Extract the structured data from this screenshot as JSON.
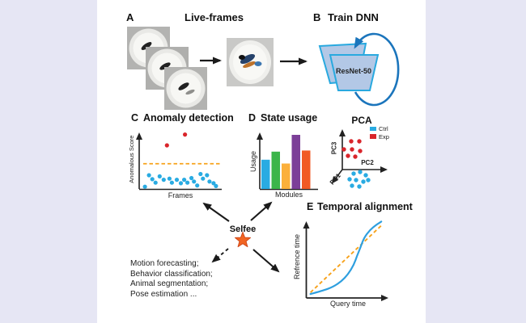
{
  "background": {
    "page": "#E6E6F4",
    "panel": "#FFFFFF"
  },
  "palette": {
    "blue": "#29ABE2",
    "green": "#3BB54A",
    "yellow": "#FBB03B",
    "purple": "#7C3F98",
    "orange": "#F15A24",
    "red": "#D9252B",
    "dorange": "#F7A21B",
    "cycle": "#1B75BC",
    "trapfill": "#B3C8E6",
    "trapstroke": "#29A9DF",
    "star": "#F26522",
    "ink": "#1A1A1A"
  },
  "panel_a": {
    "label": "A",
    "title": "Live-frames"
  },
  "panel_b": {
    "label": "B",
    "title": "Train DNN",
    "model_label": "ResNet-50"
  },
  "panel_c": {
    "label": "C",
    "title": "Anomaly detection",
    "ylabel": "Anomalous Score",
    "xlabel": "Frames"
  },
  "panel_d": {
    "label": "D",
    "title": "State usage",
    "ylabel": "Usage",
    "xlabel": "Modules"
  },
  "panel_pca": {
    "title": "PCA",
    "xlabel": "PC2",
    "ylabel": "PC3",
    "zlabel": "PC1",
    "legend": [
      {
        "label": "Ctrl",
        "color": "#29ABE2"
      },
      {
        "label": "Exp",
        "color": "#D9252B"
      }
    ]
  },
  "panel_e": {
    "label": "E",
    "title": "Temporal alignment",
    "ylabel": "Refrence time",
    "xlabel": "Query time"
  },
  "center": {
    "label": "Selfee"
  },
  "applications": {
    "lines": [
      "Motion forecasting;",
      "Behavior classification;",
      "Animal segmentation;",
      "Pose estimation ..."
    ]
  },
  "chart_data": [
    {
      "id": "anomaly",
      "type": "scatter",
      "title": "Anomaly detection",
      "xlabel": "Frames",
      "ylabel": "Anomalous Score",
      "xlim": [
        0,
        1
      ],
      "ylim": [
        0,
        1
      ],
      "threshold": 0.44,
      "threshold_style": "dashed orange line",
      "series": [
        {
          "name": "normal-frames",
          "color": "#29ABE2",
          "points": [
            [
              0.07,
              0.04
            ],
            [
              0.12,
              0.24
            ],
            [
              0.16,
              0.17
            ],
            [
              0.2,
              0.11
            ],
            [
              0.25,
              0.22
            ],
            [
              0.3,
              0.16
            ],
            [
              0.37,
              0.18
            ],
            [
              0.4,
              0.11
            ],
            [
              0.46,
              0.16
            ],
            [
              0.51,
              0.1
            ],
            [
              0.55,
              0.16
            ],
            [
              0.59,
              0.11
            ],
            [
              0.64,
              0.19
            ],
            [
              0.67,
              0.13
            ],
            [
              0.71,
              0.06
            ],
            [
              0.75,
              0.26
            ],
            [
              0.78,
              0.18
            ],
            [
              0.83,
              0.24
            ],
            [
              0.86,
              0.13
            ],
            [
              0.91,
              0.1
            ],
            [
              0.94,
              0.05
            ]
          ]
        },
        {
          "name": "anomalous-frames",
          "color": "#D9252B",
          "points": [
            [
              0.34,
              0.76
            ],
            [
              0.56,
              0.95
            ]
          ]
        }
      ]
    },
    {
      "id": "state_usage",
      "type": "bar",
      "title": "State usage",
      "xlabel": "Modules",
      "ylabel": "Usage",
      "ylim": [
        0,
        1
      ],
      "values": [
        0.54,
        0.69,
        0.47,
        1.0,
        0.71
      ],
      "colors": [
        "#29ABE2",
        "#3BB54A",
        "#FBB03B",
        "#7C3F98",
        "#F15A24"
      ]
    },
    {
      "id": "pca",
      "type": "scatter",
      "title": "PCA",
      "axes": [
        "PC1",
        "PC2",
        "PC3"
      ],
      "legend_position": "top-right",
      "series": [
        {
          "name": "Exp",
          "color": "#D9252B",
          "points": [
            [
              11,
              35
            ],
            [
              21,
              35
            ],
            [
              2,
              25
            ],
            [
              12,
              25
            ],
            [
              22,
              23
            ],
            [
              7,
              17
            ],
            [
              16,
              16
            ]
          ]
        },
        {
          "name": "Ctrl",
          "color": "#29ABE2",
          "points": [
            [
              14,
              -5
            ],
            [
              22,
              -3
            ],
            [
              29,
              -7
            ],
            [
              9,
              -12
            ],
            [
              17,
              -13
            ],
            [
              26,
              -15
            ],
            [
              32,
              -13
            ],
            [
              12,
              -20
            ],
            [
              21,
              -21
            ]
          ]
        }
      ]
    },
    {
      "id": "temporal",
      "type": "line",
      "title": "Temporal alignment",
      "xlabel": "Query time",
      "ylabel": "Refrence time",
      "xlim": [
        0,
        1
      ],
      "ylim": [
        0,
        1
      ],
      "series": [
        {
          "name": "identity-reference",
          "color": "#F7A21B",
          "style": "dashed",
          "points": [
            [
              0.05,
              0.07
            ],
            [
              0.9,
              0.92
            ]
          ]
        },
        {
          "name": "alignment-curve",
          "color": "#2E9FDF",
          "style": "solid",
          "points": [
            [
              0.05,
              0.05
            ],
            [
              0.19,
              0.09
            ],
            [
              0.32,
              0.14
            ],
            [
              0.42,
              0.21
            ],
            [
              0.5,
              0.3
            ],
            [
              0.57,
              0.42
            ],
            [
              0.61,
              0.54
            ],
            [
              0.65,
              0.64
            ],
            [
              0.69,
              0.76
            ],
            [
              0.76,
              0.86
            ],
            [
              0.84,
              0.93
            ],
            [
              0.9,
              0.97
            ]
          ]
        }
      ]
    }
  ]
}
